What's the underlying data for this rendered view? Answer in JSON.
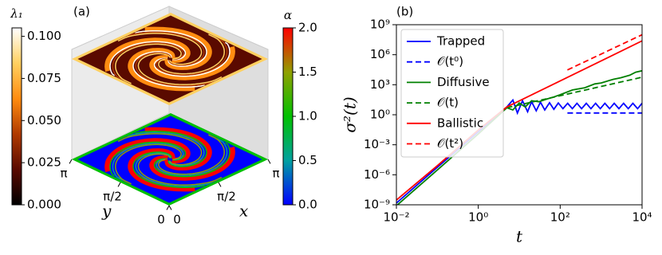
{
  "chart_data": [
    {
      "type": "surface3d",
      "panel_label": "(a)",
      "xlabel": "x",
      "ylabel": "y",
      "xlim": [
        0,
        3.1416
      ],
      "ylim": [
        0,
        3.1416
      ],
      "xticks": [
        0,
        {
          "value": 1.5708,
          "label": "π/2"
        },
        {
          "value": 3.1416,
          "label": "π"
        }
      ],
      "yticks": [
        0,
        {
          "value": 1.5708,
          "label": "π/2"
        },
        {
          "value": 3.1416,
          "label": "π"
        }
      ],
      "colorbars": [
        {
          "label": "λ₁",
          "lim": [
            0,
            0.105
          ],
          "colors": [
            "#000000",
            "#5a0a00",
            "#b03a00",
            "#ff8c10",
            "#ffd060",
            "#ffffff"
          ],
          "ticks": [
            {
              "value": 0,
              "label": "0.000"
            },
            {
              "value": 0.025,
              "label": "0.025"
            },
            {
              "value": 0.05,
              "label": "0.050"
            },
            {
              "value": 0.075,
              "label": "0.075"
            },
            {
              "value": 0.1,
              "label": "0.100"
            }
          ]
        },
        {
          "label": "α",
          "lim": [
            0,
            2
          ],
          "colors": [
            "#0000ff",
            "#00a0a0",
            "#00c000",
            "#90a000",
            "#ff0000"
          ],
          "ticks": [
            {
              "value": 0,
              "label": "0.0"
            },
            {
              "value": 0.5,
              "label": "0.5"
            },
            {
              "value": 1,
              "label": "1.0"
            },
            {
              "value": 1.5,
              "label": "1.5"
            },
            {
              "value": 2,
              "label": "2.0"
            }
          ]
        }
      ]
    },
    {
      "type": "line",
      "panel_label": "(b)",
      "xlabel": "t",
      "ylabel": "σ²(t)",
      "log": true,
      "legend": "upper left",
      "xlim": [
        0.01,
        10000
      ],
      "ylim": [
        1e-09,
        1000000000.0
      ],
      "xticks": [
        {
          "value": 0.01,
          "label": "10⁻²"
        },
        {
          "value": 1,
          "label": "10⁰"
        },
        {
          "value": 100,
          "label": "10²"
        },
        {
          "value": 10000,
          "label": "10⁴"
        }
      ],
      "yticks": [
        {
          "value": 1e-09,
          "label": "10⁻⁹"
        },
        {
          "value": 1e-06,
          "label": "10⁻⁶"
        },
        {
          "value": 0.001,
          "label": "10⁻³"
        },
        {
          "value": 1,
          "label": "10⁰"
        },
        {
          "value": 1000,
          "label": "10³"
        },
        {
          "value": 1000000,
          "label": "10⁶"
        },
        {
          "value": 1000000000,
          "label": "10⁹"
        }
      ],
      "series": [
        {
          "name": "Trapped",
          "color": "#0000ff",
          "dash": false,
          "x": [
            0.01,
            0.1,
            1,
            5,
            7,
            9,
            12,
            16,
            20,
            26,
            33,
            42,
            55,
            70,
            90,
            117,
            152,
            198,
            257,
            334,
            434,
            564,
            733,
            953,
            1239,
            1611,
            2094,
            2722,
            3539,
            4601,
            5981,
            7775,
            10000
          ],
          "values": [
            1.5e-09,
            5.6e-06,
            0.02,
            6,
            30,
            1.5,
            25,
            2,
            20,
            2.5,
            18,
            3,
            16,
            3.5,
            15,
            4,
            14,
            4,
            14,
            4,
            14,
            4,
            14,
            4,
            14,
            4,
            14,
            4,
            14,
            4,
            14,
            4,
            14
          ]
        },
        {
          "name": "𝒪(t⁰)",
          "color": "#0000ff",
          "dash": true,
          "x": [
            150,
            10000
          ],
          "values": [
            1.5,
            1.5
          ]
        },
        {
          "name": "Diffusive",
          "color": "#008000",
          "dash": false,
          "x": [
            0.01,
            0.1,
            1,
            5,
            7,
            10,
            14,
            20,
            30,
            50,
            70,
            100,
            200,
            400,
            700,
            1000,
            2000,
            3000,
            5000,
            7000,
            10000
          ],
          "values": [
            8e-10,
            3e-06,
            0.012,
            5,
            3,
            15,
            6,
            25,
            20,
            40,
            60,
            100,
            300,
            500,
            1200,
            1500,
            3500,
            5000,
            9000,
            18000,
            25000
          ]
        },
        {
          "name": "𝒪(t)",
          "color": "#008000",
          "dash": true,
          "x": [
            5,
            10000
          ],
          "values": [
            5,
            5600
          ]
        },
        {
          "name": "Ballistic",
          "color": "#ff0000",
          "dash": false,
          "x": [
            0.01,
            0.1,
            1,
            5,
            100,
            10000
          ],
          "values": [
            3e-09,
            8e-06,
            0.03,
            6,
            2400,
            24000000
          ]
        },
        {
          "name": "𝒪(t²)",
          "color": "#ff0000",
          "dash": true,
          "x": [
            150,
            10000
          ],
          "values": [
            30000,
            100000000
          ]
        }
      ]
    }
  ]
}
